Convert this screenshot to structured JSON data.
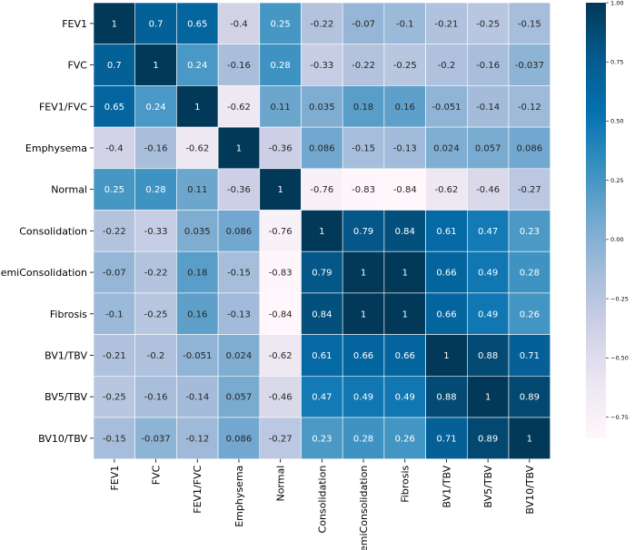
{
  "chart_data": {
    "type": "heatmap",
    "title": "",
    "labels": [
      "FEV1",
      "FVC",
      "FEV1/FVC",
      "Emphysema",
      "Normal",
      "Consolidation",
      "SemiConsolidation",
      "Fibrosis",
      "BV1/TBV",
      "BV5/TBV",
      "BV10/TBV"
    ],
    "values": [
      [
        1,
        0.7,
        0.65,
        -0.4,
        0.25,
        -0.22,
        -0.07,
        -0.1,
        -0.21,
        -0.25,
        -0.15
      ],
      [
        0.7,
        1,
        0.24,
        -0.16,
        0.28,
        -0.33,
        -0.22,
        -0.25,
        -0.2,
        -0.16,
        -0.037
      ],
      [
        0.65,
        0.24,
        1,
        -0.62,
        0.11,
        0.035,
        0.18,
        0.16,
        -0.051,
        -0.14,
        -0.12
      ],
      [
        -0.4,
        -0.16,
        -0.62,
        1,
        -0.36,
        0.086,
        -0.15,
        -0.13,
        0.024,
        0.057,
        0.086
      ],
      [
        0.25,
        0.28,
        0.11,
        -0.36,
        1,
        -0.76,
        -0.83,
        -0.84,
        -0.62,
        -0.46,
        -0.27
      ],
      [
        -0.22,
        -0.33,
        0.035,
        0.086,
        -0.76,
        1,
        0.79,
        0.84,
        0.61,
        0.47,
        0.23
      ],
      [
        -0.07,
        -0.22,
        0.18,
        -0.15,
        -0.83,
        0.79,
        1,
        1,
        0.66,
        0.49,
        0.28
      ],
      [
        -0.1,
        -0.25,
        0.16,
        -0.13,
        -0.84,
        0.84,
        1,
        1,
        0.66,
        0.49,
        0.26
      ],
      [
        -0.21,
        -0.2,
        -0.051,
        0.024,
        -0.62,
        0.61,
        0.66,
        0.66,
        1,
        0.88,
        0.71
      ],
      [
        -0.25,
        -0.16,
        -0.14,
        0.057,
        -0.46,
        0.47,
        0.49,
        0.49,
        0.88,
        1,
        0.89
      ],
      [
        -0.15,
        -0.037,
        -0.12,
        0.086,
        -0.27,
        0.23,
        0.28,
        0.26,
        0.71,
        0.89,
        1
      ]
    ],
    "cell_labels": [
      [
        "1",
        "0.7",
        "0.65",
        "-0.4",
        "0.25",
        "-0.22",
        "-0.07",
        "-0.1",
        "-0.21",
        "-0.25",
        "-0.15"
      ],
      [
        "0.7",
        "1",
        "0.24",
        "-0.16",
        "0.28",
        "-0.33",
        "-0.22",
        "-0.25",
        "-0.2",
        "-0.16",
        "-0.037"
      ],
      [
        "0.65",
        "0.24",
        "1",
        "-0.62",
        "0.11",
        "0.035",
        "0.18",
        "0.16",
        "-0.051",
        "-0.14",
        "-0.12"
      ],
      [
        "-0.4",
        "-0.16",
        "-0.62",
        "1",
        "-0.36",
        "0.086",
        "-0.15",
        "-0.13",
        "0.024",
        "0.057",
        "0.086"
      ],
      [
        "0.25",
        "0.28",
        "0.11",
        "-0.36",
        "1",
        "-0.76",
        "-0.83",
        "-0.84",
        "-0.62",
        "-0.46",
        "-0.27"
      ],
      [
        "-0.22",
        "-0.33",
        "0.035",
        "0.086",
        "-0.76",
        "1",
        "0.79",
        "0.84",
        "0.61",
        "0.47",
        "0.23"
      ],
      [
        "-0.07",
        "-0.22",
        "0.18",
        "-0.15",
        "-0.83",
        "0.79",
        "1",
        "1",
        "0.66",
        "0.49",
        "0.28"
      ],
      [
        "-0.1",
        "-0.25",
        "0.16",
        "-0.13",
        "-0.84",
        "0.84",
        "1",
        "1",
        "0.66",
        "0.49",
        "0.26"
      ],
      [
        "-0.21",
        "-0.2",
        "-0.051",
        "0.024",
        "-0.62",
        "0.61",
        "0.66",
        "0.66",
        "1",
        "0.88",
        "0.71"
      ],
      [
        "-0.25",
        "-0.16",
        "-0.14",
        "0.057",
        "-0.46",
        "0.47",
        "0.49",
        "0.49",
        "0.88",
        "1",
        "0.89"
      ],
      [
        "-0.15",
        "-0.037",
        "-0.12",
        "0.086",
        "-0.27",
        "0.23",
        "0.28",
        "0.26",
        "0.71",
        "0.89",
        "1"
      ]
    ],
    "colorbar": {
      "range": [
        -0.84,
        1
      ],
      "ticks": [
        1.0,
        0.75,
        0.5,
        0.25,
        0.0,
        -0.25,
        -0.5,
        -0.75
      ],
      "tick_labels": [
        "1.00",
        "0.75",
        "0.50",
        "0.25",
        "0.00",
        "−0.25",
        "−0.50",
        "−0.75"
      ]
    },
    "colormap": "PuBu",
    "colormap_stops": [
      "#fff7fb",
      "#ece7f2",
      "#d0d1e6",
      "#a6bddb",
      "#74a9cf",
      "#3690c0",
      "#0570b0",
      "#045a8d",
      "#023858"
    ],
    "annotation_light": "#ffffff",
    "annotation_dark": "#262626",
    "axis_text_color": "#000000",
    "cell_border_color": "#ffffff",
    "xlabel": "",
    "ylabel": ""
  }
}
